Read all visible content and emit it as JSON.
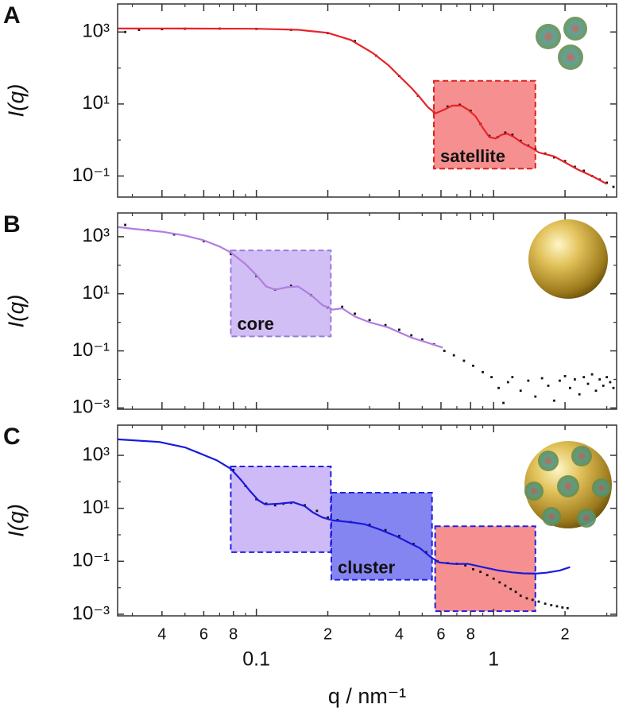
{
  "chart_data": [
    {
      "type": "line",
      "panel": "A",
      "y_label": "I(q)",
      "log_x": true,
      "log_y": true,
      "xlim": [
        0.026,
        3.3
      ],
      "ylim": [
        0.026,
        6000
      ],
      "xticks": [
        0.04,
        0.06,
        0.08,
        0.1,
        0.2,
        0.4,
        0.6,
        0.8,
        1,
        2
      ],
      "show_xtick_labels": false,
      "xminorticks": [
        0.03,
        0.05,
        0.07,
        0.09,
        0.3,
        0.5,
        0.7,
        0.9,
        3
      ],
      "yticks": [
        {
          "value": 1000,
          "label": "10³"
        },
        {
          "value": 10,
          "label": "10¹"
        },
        {
          "value": 0.1,
          "label": "10⁻¹"
        }
      ],
      "yminorticks": [
        100,
        1
      ],
      "regions": [
        {
          "label": "satellite",
          "x": [
            0.56,
            1.5
          ],
          "y": [
            0.16,
            44
          ],
          "color": "#f47c7c",
          "edgecolor": "#e02020"
        }
      ],
      "series": [
        {
          "style": "scatter",
          "color": "#111111",
          "x": [
            0.028,
            0.032,
            0.04,
            0.05,
            0.07,
            0.1,
            0.14,
            0.2,
            0.26,
            0.32,
            0.4,
            0.48,
            0.56,
            0.64,
            0.72,
            0.8,
            0.88,
            0.96,
            1.04,
            1.12,
            1.2,
            1.3,
            1.4,
            1.5,
            1.65,
            1.8,
            2.0,
            2.2,
            2.4,
            2.6,
            2.8,
            3.0,
            3.2
          ],
          "values": [
            1000,
            1150,
            1200,
            1230,
            1240,
            1220,
            1150,
            930,
            560,
            220,
            60,
            17,
            6,
            8.5,
            9.5,
            6.5,
            2.8,
            1.3,
            1.2,
            1.6,
            1.4,
            0.95,
            0.7,
            0.55,
            0.42,
            0.33,
            0.26,
            0.18,
            0.14,
            0.1,
            0.08,
            0.065,
            0.05
          ]
        },
        {
          "style": "line",
          "color": "#e8232a",
          "x": [
            0.026,
            0.05,
            0.1,
            0.15,
            0.2,
            0.25,
            0.31,
            0.36,
            0.4,
            0.45,
            0.49,
            0.53,
            0.57,
            0.62,
            0.67,
            0.73,
            0.78,
            0.84,
            0.9,
            0.96,
            1.02,
            1.08,
            1.14,
            1.22,
            1.33,
            1.45,
            1.55,
            1.8,
            2.27,
            2.6,
            3.0
          ],
          "values": [
            1250,
            1250,
            1230,
            1150,
            950,
            600,
            260,
            120,
            60,
            28,
            15,
            8,
            5.5,
            7,
            9,
            9,
            7,
            4.5,
            2.2,
            1.2,
            1.1,
            1.4,
            1.5,
            1.2,
            0.8,
            0.6,
            0.45,
            0.35,
            0.15,
            0.1,
            0.06
          ]
        }
      ]
    },
    {
      "type": "line",
      "panel": "B",
      "y_label": "I(q)",
      "log_x": true,
      "log_y": true,
      "xlim": [
        0.026,
        3.3
      ],
      "ylim": [
        0.0009,
        6800
      ],
      "xticks": [
        0.04,
        0.06,
        0.08,
        0.1,
        0.2,
        0.4,
        0.6,
        0.8,
        1,
        2
      ],
      "show_xtick_labels": false,
      "xminorticks": [
        0.03,
        0.05,
        0.07,
        0.09,
        0.3,
        0.5,
        0.7,
        0.9,
        3
      ],
      "yticks": [
        {
          "value": 1000,
          "label": "10³"
        },
        {
          "value": 10,
          "label": "10¹"
        },
        {
          "value": 0.1,
          "label": "10⁻¹"
        },
        {
          "value": 0.001,
          "label": "10⁻³"
        }
      ],
      "yminorticks": [
        100,
        1,
        0.01
      ],
      "regions": [
        {
          "label": "core",
          "x": [
            0.078,
            0.206
          ],
          "y": [
            0.32,
            330
          ],
          "color": "#c9b3f2",
          "edgecolor": "#9a7be0"
        }
      ],
      "series": [
        {
          "style": "scatter",
          "color": "#111111",
          "x": [
            0.028,
            0.035,
            0.045,
            0.06,
            0.078,
            0.1,
            0.12,
            0.14,
            0.17,
            0.2,
            0.23,
            0.26,
            0.3,
            0.35,
            0.4,
            0.45,
            0.5,
            0.56,
            0.62,
            0.68,
            0.75,
            0.82,
            0.9,
            0.98,
            1.05,
            1.1,
            1.15,
            1.2,
            1.3,
            1.4,
            1.5,
            1.6,
            1.7,
            1.8,
            1.9,
            2.0,
            2.1,
            2.2,
            2.3,
            2.4,
            2.5,
            2.6,
            2.7,
            2.8,
            2.9,
            3.0,
            3.1,
            3.2
          ],
          "values": [
            2600,
            1700,
            1200,
            700,
            250,
            42,
            14,
            19,
            9,
            3.3,
            3.5,
            2,
            1.2,
            0.8,
            0.55,
            0.35,
            0.25,
            0.17,
            0.1,
            0.07,
            0.045,
            0.03,
            0.018,
            0.012,
            0.005,
            0.0015,
            0.008,
            0.012,
            0.004,
            0.009,
            0.0025,
            0.011,
            0.006,
            0.0018,
            0.009,
            0.013,
            0.005,
            0.01,
            0.003,
            0.012,
            0.007,
            0.015,
            0.004,
            0.01,
            0.006,
            0.012,
            0.008,
            0.005
          ]
        },
        {
          "style": "line",
          "color": "#b07ee0",
          "x": [
            0.026,
            0.03,
            0.04,
            0.05,
            0.06,
            0.07,
            0.078,
            0.09,
            0.1,
            0.11,
            0.12,
            0.135,
            0.15,
            0.17,
            0.19,
            0.21,
            0.23,
            0.26,
            0.3,
            0.36,
            0.45,
            0.52,
            0.61
          ],
          "values": [
            2200,
            1900,
            1500,
            1100,
            750,
            450,
            280,
            110,
            45,
            18,
            14,
            17,
            18,
            9,
            4,
            2.8,
            3.1,
            1.6,
            1.0,
            0.66,
            0.29,
            0.2,
            0.13
          ]
        }
      ]
    },
    {
      "type": "line",
      "panel": "C",
      "y_label": "I(q)",
      "x_label": "q / nm⁻¹",
      "log_x": true,
      "log_y": true,
      "xlim": [
        0.026,
        3.3
      ],
      "ylim": [
        0.00087,
        13800
      ],
      "xticks": [
        {
          "value": 0.04,
          "label": "4"
        },
        {
          "value": 0.06,
          "label": "6"
        },
        {
          "value": 0.08,
          "label": "8"
        },
        0.1,
        {
          "value": 0.2,
          "label": "2"
        },
        {
          "value": 0.4,
          "label": "4"
        },
        {
          "value": 0.6,
          "label": "6"
        },
        {
          "value": 0.8,
          "label": "8"
        },
        1,
        {
          "value": 2,
          "label": "2"
        }
      ],
      "show_xtick_labels": true,
      "xminorticks": [
        0.03,
        0.05,
        0.07,
        0.09,
        0.3,
        0.5,
        0.7,
        0.9,
        3
      ],
      "yticks": [
        {
          "value": 1000,
          "label": "10³"
        },
        {
          "value": 10,
          "label": "10¹"
        },
        {
          "value": 0.1,
          "label": "10⁻¹"
        },
        {
          "value": 0.001,
          "label": "10⁻³"
        }
      ],
      "yminorticks": [
        100,
        1,
        0.01
      ],
      "regions": [
        {
          "x": [
            0.078,
            0.206
          ],
          "y": [
            0.22,
            380
          ],
          "color": "#c6aef5",
          "edgecolor": "#2020e0"
        },
        {
          "label": "cluster",
          "x": [
            0.207,
            0.55
          ],
          "y": [
            0.02,
            39
          ],
          "color": "#7070f0",
          "edgecolor": "#2020e0"
        },
        {
          "x": [
            0.567,
            1.5
          ],
          "y": [
            0.0013,
            2.1
          ],
          "color": "#f47c7c",
          "edgecolor": "#2020e0"
        }
      ],
      "series": [
        {
          "style": "scatter",
          "color": "#111111",
          "x": [
            0.08,
            0.09,
            0.1,
            0.11,
            0.12,
            0.13,
            0.14,
            0.16,
            0.18,
            0.2,
            0.22,
            0.25,
            0.3,
            0.35,
            0.4,
            0.46,
            0.52,
            0.58,
            0.64,
            0.7,
            0.76,
            0.82,
            0.88,
            0.94,
            1.0,
            1.06,
            1.12,
            1.18,
            1.24,
            1.3,
            1.38,
            1.46,
            1.55,
            1.65,
            1.75,
            1.85,
            1.95,
            2.05
          ],
          "values": [
            280,
            70,
            22,
            15,
            13,
            15,
            16,
            13,
            8,
            4.5,
            3.6,
            3,
            2.4,
            1.5,
            0.9,
            0.45,
            0.22,
            0.1,
            0.085,
            0.08,
            0.07,
            0.05,
            0.04,
            0.03,
            0.022,
            0.016,
            0.012,
            0.009,
            0.007,
            0.005,
            0.004,
            0.0035,
            0.003,
            0.0025,
            0.0022,
            0.002,
            0.0018,
            0.0017
          ]
        },
        {
          "style": "line",
          "color": "#1a1adc",
          "x": [
            0.026,
            0.039,
            0.05,
            0.057,
            0.068,
            0.078,
            0.086,
            0.094,
            0.102,
            0.109,
            0.125,
            0.143,
            0.16,
            0.173,
            0.19,
            0.21,
            0.25,
            0.286,
            0.33,
            0.39,
            0.44,
            0.49,
            0.54,
            0.59,
            0.68,
            0.78,
            0.9,
            1.05,
            1.2,
            1.33,
            1.5,
            1.67,
            1.9,
            2.1
          ],
          "values": [
            4000,
            3200,
            2000,
            1250,
            650,
            310,
            120,
            45,
            20,
            14,
            15,
            17,
            12,
            7,
            4.5,
            3.5,
            3,
            2.5,
            1.6,
            0.87,
            0.5,
            0.31,
            0.15,
            0.09,
            0.08,
            0.08,
            0.06,
            0.045,
            0.038,
            0.035,
            0.034,
            0.037,
            0.045,
            0.06
          ]
        }
      ]
    }
  ]
}
